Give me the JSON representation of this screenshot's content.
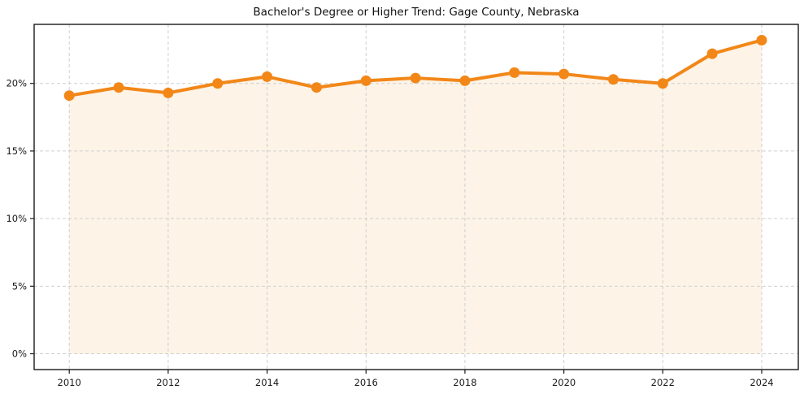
{
  "page": {
    "background_color": "#ffffff"
  },
  "chart_data": {
    "type": "area",
    "title": "Bachelor's Degree or Higher Trend: Gage County, Nebraska",
    "xlabel": "",
    "ylabel": "",
    "unit": "%",
    "x": [
      2010,
      2011,
      2012,
      2013,
      2014,
      2015,
      2016,
      2017,
      2018,
      2019,
      2020,
      2021,
      2022,
      2023,
      2024
    ],
    "series": [
      {
        "name": "Bachelor's degree or higher",
        "values": [
          19.1,
          19.7,
          19.3,
          20.0,
          20.5,
          19.7,
          20.2,
          20.4,
          20.2,
          20.8,
          20.7,
          20.3,
          20.0,
          22.2,
          23.2
        ]
      }
    ],
    "x_tick_values": [
      2010,
      2012,
      2014,
      2016,
      2018,
      2020,
      2022,
      2024
    ],
    "x_tick_labels": [
      "2010",
      "2012",
      "2014",
      "2016",
      "2018",
      "2020",
      "2022",
      "2024"
    ],
    "y_tick_values": [
      0,
      5,
      10,
      15,
      20
    ],
    "y_tick_labels": [
      "0%",
      "5%",
      "10%",
      "15%",
      "20%"
    ],
    "xlim": [
      2009.29,
      2024.74
    ],
    "ylim": [
      -1.17,
      24.37
    ],
    "grid": true,
    "legend": "none",
    "marker": "circle",
    "colors": {
      "line": "#f28718",
      "marker": "#f28718",
      "area_fill": "#fdf3e7",
      "gridline": "#cfcfcf",
      "spine": "#1a1a1a",
      "tick_label": "#1a1a1a",
      "title": "#111111",
      "background": "#ffffff"
    }
  }
}
